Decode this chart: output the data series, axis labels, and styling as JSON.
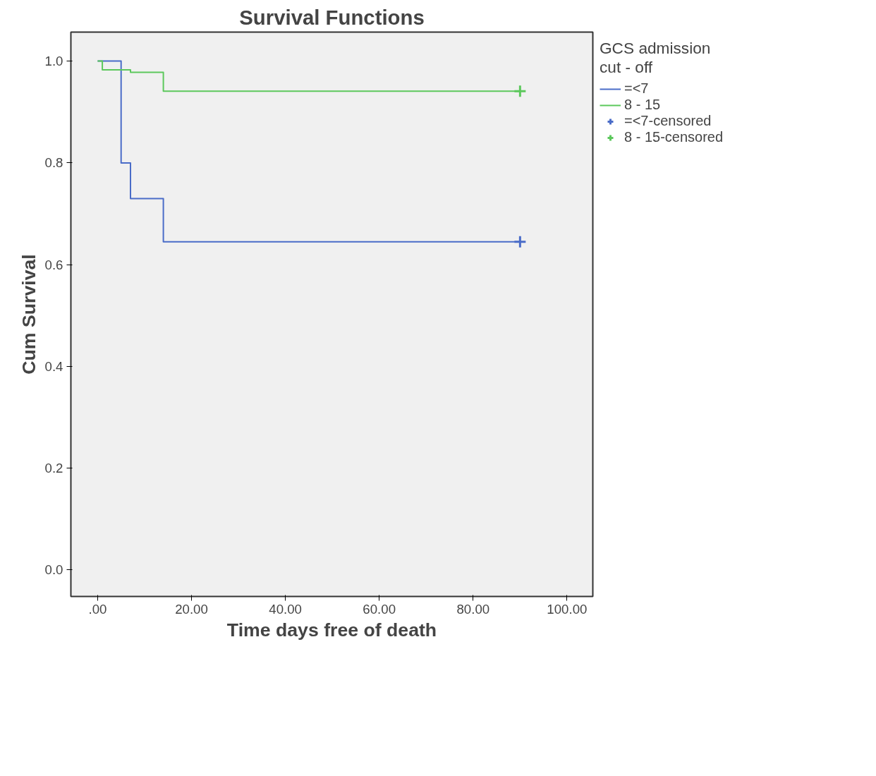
{
  "chart_data": {
    "type": "step",
    "title": "Survival Functions",
    "xlabel": "Time days free of death",
    "ylabel": "Cum Survival",
    "legend_title": "GCS admission\ncut - off",
    "legend": "top right",
    "grid": false,
    "xlim": [
      -5.7,
      105.5
    ],
    "ylim": [
      -0.052,
      1.057
    ],
    "xticks": [
      {
        "value": 0,
        "label": ".00"
      },
      {
        "value": 20,
        "label": "20.00"
      },
      {
        "value": 40,
        "label": "40.00"
      },
      {
        "value": 60,
        "label": "60.00"
      },
      {
        "value": 80,
        "label": "80.00"
      },
      {
        "value": 100,
        "label": "100.00"
      }
    ],
    "yticks": [
      {
        "value": 0,
        "label": "0.0"
      },
      {
        "value": 0.2,
        "label": "0.2"
      },
      {
        "value": 0.4,
        "label": "0.4"
      },
      {
        "value": 0.6,
        "label": "0.6"
      },
      {
        "value": 0.8,
        "label": "0.8"
      },
      {
        "value": 1.0,
        "label": "1.0"
      }
    ],
    "series": [
      {
        "name": "=<7",
        "color": "#4a6cc8",
        "x": [
          0,
          5,
          7,
          14,
          90
        ],
        "values": [
          1.0,
          0.8,
          0.73,
          0.645,
          0.645
        ]
      },
      {
        "name": "8 - 15",
        "color": "#5cc85c",
        "x": [
          0,
          1,
          7,
          14,
          90
        ],
        "values": [
          1.0,
          0.983,
          0.978,
          0.941,
          0.941
        ]
      },
      {
        "name": "=<7-censored",
        "type": "scatter",
        "marker": "cross",
        "color": "#4a6cc8",
        "x": [
          90
        ],
        "values": [
          0.645
        ]
      },
      {
        "name": "8 - 15-censored",
        "type": "scatter",
        "marker": "cross",
        "color": "#5cc85c",
        "x": [
          90
        ],
        "values": [
          0.941
        ]
      }
    ]
  }
}
